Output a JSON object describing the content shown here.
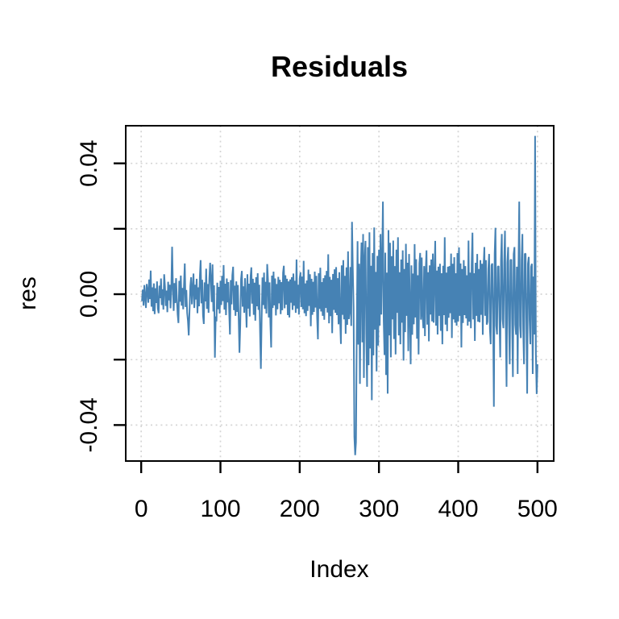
{
  "title": "Residuals",
  "x_axis": {
    "label": "Index",
    "ticks": [
      0,
      100,
      200,
      300,
      400,
      500
    ],
    "tick_labels": [
      "0",
      "100",
      "200",
      "300",
      "400",
      "500"
    ]
  },
  "y_axis": {
    "label": "res",
    "ticks": [
      -0.04,
      -0.02,
      0,
      0.02,
      0.04
    ],
    "tick_labels": [
      "-0.04",
      "",
      "0.00",
      "",
      "0.04"
    ]
  },
  "colors": {
    "line": "#4682B4",
    "grid": "#d5d5d5",
    "axis": "#000000",
    "background": "#ffffff",
    "text": "#000000"
  },
  "chart_data": {
    "type": "line",
    "title": "Residuals",
    "xlabel": "Index",
    "ylabel": "res",
    "grid": "dotted",
    "legend": "none",
    "x_start": 1,
    "x_ticks": [
      0,
      100,
      200,
      300,
      400,
      500
    ],
    "y_ticks": [
      -0.04,
      -0.02,
      0,
      0.02,
      0.04
    ],
    "y_tick_labels_shown": [
      "-0.04",
      "0.00",
      "0.04"
    ],
    "xlim": [
      -19.5,
      520.5
    ],
    "ylim": [
      -0.051,
      0.0515
    ],
    "values": [
      -0.0021,
      0.0014,
      -0.0035,
      0.0028,
      -0.0008,
      -0.0042,
      0.0031,
      0.0012,
      -0.0026,
      0.0045,
      -0.0015,
      0.0072,
      -0.0038,
      0.0021,
      -0.0052,
      0.0033,
      -0.0061,
      0.0018,
      -0.0027,
      0.0039,
      -0.0044,
      -0.0058,
      0.0026,
      -0.0012,
      0.0048,
      -0.0033,
      0.0015,
      -0.0047,
      0.0061,
      0.0024,
      -0.0036,
      0.0011,
      -0.0055,
      0.0038,
      -0.0019,
      0.0029,
      -0.0043,
      0.0016,
      0.0145,
      0.0022,
      -0.0051,
      0.0034,
      -0.0027,
      0.0049,
      -0.0014,
      -0.0062,
      -0.0088,
      0.0041,
      -0.0023,
      0.0057,
      -0.0035,
      0.0019,
      -0.0046,
      0.0028,
      0.0094,
      -0.0039,
      0.0013,
      -0.0057,
      -0.0082,
      -0.0126,
      -0.0048,
      0.0025,
      0.0052,
      -0.0031,
      0.0017,
      0.0063,
      -0.0042,
      0.0029,
      -0.0016,
      0.0047,
      -0.0058,
      0.0021,
      -0.0037,
      0.0053,
      0.0104,
      -0.0028,
      0.0044,
      -0.0065,
      -0.0091,
      0.0036,
      -0.0022,
      0.0078,
      -0.0045,
      0.0031,
      -0.0057,
      0.0049,
      0.0096,
      0.0038,
      -0.0024,
      0.0091,
      -0.0053,
      0.0027,
      -0.0194,
      -0.0068,
      -0.0083,
      0.0035,
      -0.0046,
      0.0022,
      -0.0059,
      0.0041,
      -0.0033,
      0.0056,
      -0.0021,
      0.0089,
      -0.0047,
      0.0032,
      -0.0064,
      0.0048,
      -0.0025,
      0.0037,
      -0.0052,
      -0.0123,
      0.0043,
      -0.0031,
      0.0058,
      0.0084,
      -0.0049,
      0.0026,
      -0.0066,
      0.0039,
      -0.0054,
      0.0028,
      -0.0072,
      -0.0179,
      -0.0095,
      0.0046,
      0.0071,
      -0.0038,
      0.0024,
      -0.0057,
      0.0049,
      -0.0026,
      -0.0102,
      0.0061,
      -0.0044,
      0.0032,
      -0.0068,
      0.0053,
      0.0082,
      -0.0029,
      0.0047,
      -0.0063,
      0.0035,
      -0.0081,
      0.0052,
      -0.0037,
      0.0064,
      -0.0048,
      0.0029,
      -0.0116,
      -0.0228,
      -0.0074,
      0.0051,
      -0.0033,
      0.0066,
      -0.0045,
      0.0038,
      -0.0059,
      0.0092,
      0.0044,
      -0.0071,
      0.0036,
      -0.0088,
      -0.0163,
      0.0057,
      -0.0042,
      0.0069,
      -0.0034,
      0.0048,
      -0.0065,
      0.0031,
      -0.0046,
      0.0053,
      -0.0028,
      0.0044,
      -0.0061,
      0.0037,
      -0.0049,
      0.0066,
      0.0087,
      -0.0043,
      0.0058,
      -0.0032,
      0.0047,
      -0.0064,
      0.0039,
      -0.0071,
      0.0045,
      -0.0026,
      0.0052,
      -0.0048,
      0.0063,
      -0.0035,
      0.0041,
      -0.0057,
      0.0106,
      -0.0044,
      0.0029,
      -0.0062,
      0.0048,
      0.0067,
      -0.0039,
      0.0054,
      -0.0046,
      0.0102,
      -0.0058,
      0.0033,
      -0.0067,
      0.0042,
      -0.0051,
      0.0075,
      -0.0036,
      0.0061,
      -0.0098,
      0.0047,
      -0.0063,
      0.0038,
      -0.0054,
      0.0069,
      -0.0041,
      0.0056,
      -0.0072,
      -0.0138,
      0.0064,
      -0.0045,
      0.0081,
      -0.0053,
      0.0037,
      -0.0066,
      0.0049,
      -0.0078,
      0.0058,
      -0.0042,
      0.0071,
      -0.0056,
      0.0122,
      -0.0089,
      0.0053,
      -0.0067,
      0.0044,
      -0.0119,
      0.0062,
      -0.0048,
      0.0076,
      -0.0057,
      0.0083,
      -0.0064,
      0.0049,
      -0.0092,
      0.0067,
      -0.0078,
      -0.0152,
      0.0088,
      -0.0063,
      0.0104,
      -0.0077,
      0.0056,
      -0.0121,
      0.0082,
      -0.0094,
      0.0131,
      -0.0076,
      -0.0052,
      0.0083,
      -0.0097,
      0.0221,
      0.0078,
      -0.0043,
      -0.0436,
      -0.0492,
      -0.0453,
      -0.0118,
      0.0162,
      -0.0154,
      0.0093,
      -0.0274,
      0.0066,
      0.0158,
      -0.0147,
      0.0184,
      -0.0256,
      0.0107,
      0.0163,
      -0.0122,
      -0.0283,
      0.0144,
      -0.0217,
      0.0189,
      -0.0166,
      0.0087,
      -0.0324,
      0.0126,
      -0.0187,
      0.0204,
      -0.0108,
      0.0068,
      -0.0236,
      0.0117,
      -0.0157,
      0.0136,
      -0.0096,
      0.0184,
      -0.0062,
      0.0097,
      0.0283,
      -0.0081,
      -0.0186,
      0.0127,
      -0.0247,
      0.0066,
      -0.0304,
      0.0196,
      -0.0126,
      0.0157,
      -0.0193,
      0.0116,
      -0.0077,
      0.0164,
      -0.0137,
      0.0086,
      -0.0184,
      0.0136,
      -0.0057,
      0.0174,
      -0.0126,
      0.0067,
      -0.0153,
      0.0106,
      -0.0087,
      0.0134,
      -0.0203,
      0.0077,
      -0.0116,
      0.0154,
      -0.0066,
      0.0096,
      -0.0174,
      0.0123,
      -0.0046,
      -0.0214,
      0.0088,
      -0.0124,
      0.0063,
      -0.0092,
      0.0153,
      -0.0071,
      0.0107,
      -0.0136,
      0.0058,
      -0.0184,
      0.0094,
      0.0126,
      -0.0078,
      0.0112,
      -0.0063,
      -0.0104,
      0.0086,
      -0.0128,
      0.0071,
      0.0134,
      -0.0093,
      0.0067,
      -0.0144,
      0.0088,
      -0.0062,
      0.0106,
      -0.0083,
      0.0124,
      -0.0087,
      0.0058,
      0.0163,
      -0.0096,
      0.0072,
      -0.0123,
      0.0084,
      -0.0066,
      0.0093,
      -0.0112,
      0.0064,
      -0.0153,
      0.0087,
      -0.0064,
      0.0174,
      -0.0093,
      0.0066,
      -0.0113,
      0.0084,
      -0.0072,
      0.0086,
      -0.0058,
      0.0124,
      -0.0134,
      0.0093,
      -0.0077,
      0.0113,
      -0.0087,
      0.0064,
      -0.0096,
      0.0126,
      -0.0083,
      0.0143,
      -0.0066,
      0.0094,
      -0.0163,
      0.0077,
      -0.0088,
      0.0104,
      -0.0064,
      0.0086,
      -0.0074,
      0.0058,
      -0.0096,
      0.0164,
      -0.0084,
      0.0066,
      -0.0104,
      0.0093,
      0.0188,
      -0.0077,
      0.0064,
      -0.0143,
      0.0096,
      -0.0066,
      0.0123,
      -0.0084,
      0.0077,
      -0.0086,
      0.0104,
      -0.0063,
      0.0093,
      -0.0124,
      0.0086,
      0.0144,
      -0.0066,
      0.0104,
      -0.0093,
      -0.0084,
      0.0077,
      0.0123,
      -0.0106,
      -0.0153,
      0.0088,
      0.0094,
      -0.0066,
      -0.0344,
      0.0124,
      0.0203,
      -0.0096,
      -0.0123,
      0.0084,
      0.0086,
      -0.0066,
      -0.0193,
      0.0104,
      0.0184,
      -0.0077,
      -0.0104,
      0.0093,
      0.0194,
      -0.0084,
      -0.0283,
      0.0096,
      0.0144,
      -0.0077,
      -0.0214,
      0.0104,
      0.0106,
      -0.0086,
      -0.0253,
      0.0123,
      0.0144,
      -0.0093,
      -0.0124,
      0.0084,
      -0.0244,
      0.0066,
      0.0283,
      -0.0096,
      -0.0134,
      0.0104,
      0.0184,
      -0.0104,
      -0.0214,
      0.0123,
      0.0124,
      -0.0086,
      -0.0304,
      0.0093,
      0.0114,
      -0.0077,
      -0.0153,
      0.0084,
      0.0093,
      -0.0244,
      0.0054,
      -0.0123,
      0.0484,
      -0.0184,
      -0.0305,
      -0.0214
    ]
  }
}
